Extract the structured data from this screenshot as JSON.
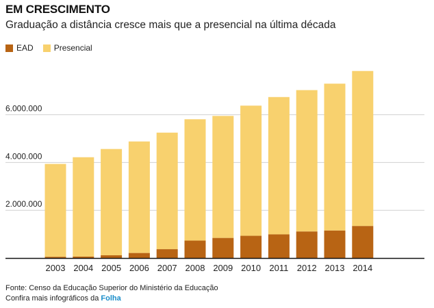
{
  "header": {
    "title": "EM CRESCIMENTO",
    "subtitle": "Graduação a distância cresce mais que a presencial na última década"
  },
  "legend": {
    "ead_label": "EAD",
    "presencial_label": "Presencial"
  },
  "colors": {
    "ead": "#b86414",
    "presencial": "#f8d16e",
    "grid": "#d0d0d0",
    "axis": "#111111",
    "brand": "#1a8dc9"
  },
  "chart_data": {
    "type": "bar",
    "stacked": true,
    "categories": [
      "2003",
      "2004",
      "2005",
      "2006",
      "2007",
      "2008",
      "2009",
      "2010",
      "2011",
      "2012",
      "2013",
      "2014"
    ],
    "series": [
      {
        "name": "EAD",
        "values": [
          50000,
          60000,
          115000,
          210000,
          370000,
          730000,
          840000,
          930000,
          990000,
          1110000,
          1150000,
          1340000
        ]
      },
      {
        "name": "Presencial",
        "values": [
          3890000,
          4160000,
          4450000,
          4670000,
          4880000,
          5080000,
          5110000,
          5450000,
          5750000,
          5920000,
          6150000,
          6490000
        ]
      }
    ],
    "yticks": [
      2000000,
      4000000,
      6000000
    ],
    "ytick_labels": [
      "2.000.000",
      "4.000.000",
      "6.000.000"
    ],
    "ylim": [
      0,
      7900000
    ],
    "grid": true,
    "legend_position": "top-left"
  },
  "footer": {
    "source": "Fonte: Censo da Educação Superior do Ministério da Educação",
    "more_prefix": "Confira mais infográficos da ",
    "brand": "Folha"
  }
}
